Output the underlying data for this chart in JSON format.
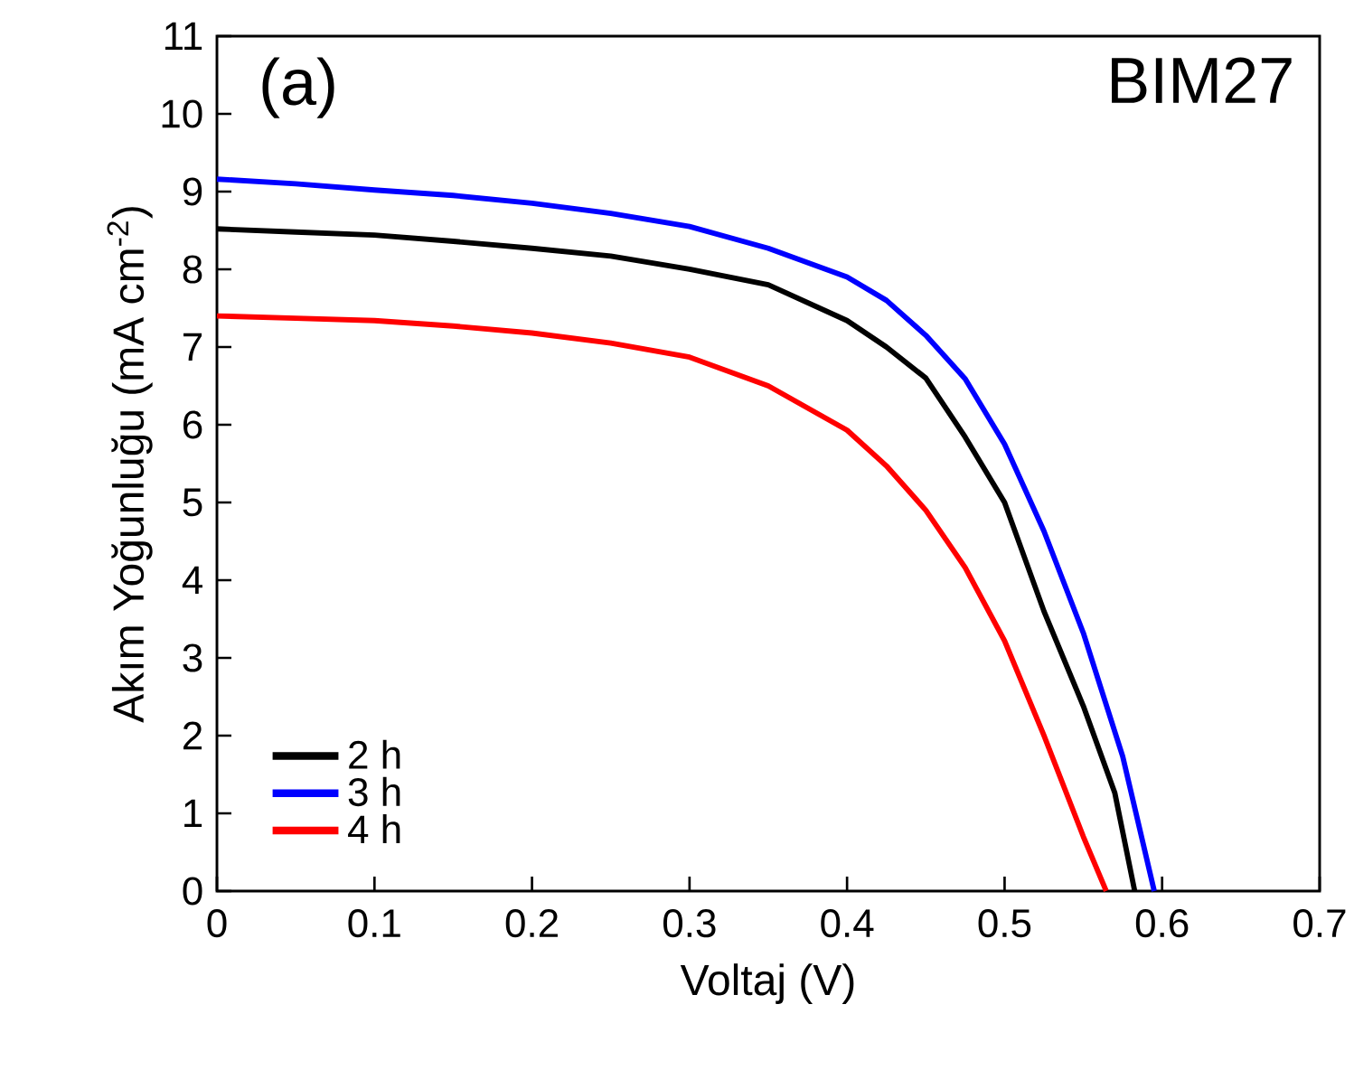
{
  "chart_data": {
    "type": "line",
    "xlabel": "Voltaj (V)",
    "ylabel": "Akım Yoğunluğu (mA cm$^{-2}$)",
    "annotations": [
      "(a)",
      "BIM27"
    ],
    "xlim": [
      0,
      0.7
    ],
    "ylim": [
      0,
      11
    ],
    "xticks": [
      0,
      0.1,
      0.2,
      0.3,
      0.4,
      0.5,
      0.6,
      0.7
    ],
    "yticks": [
      0,
      1,
      2,
      3,
      4,
      5,
      6,
      7,
      8,
      9,
      10,
      11
    ],
    "grid": false,
    "legend": "bottom left",
    "marker": "none",
    "line_style": "solid",
    "series": [
      {
        "name": "2 h",
        "color": "#000000",
        "x": [
          0,
          0.05,
          0.1,
          0.15,
          0.2,
          0.25,
          0.3,
          0.35,
          0.4,
          0.425,
          0.45,
          0.475,
          0.5,
          0.525,
          0.55,
          0.57,
          0.5826
        ],
        "values": [
          8.52,
          8.48,
          8.44,
          8.36,
          8.27,
          8.17,
          8.0,
          7.8,
          7.34,
          7.0,
          6.6,
          5.84,
          5.0,
          3.6,
          2.38,
          1.26,
          0
        ]
      },
      {
        "name": "3 h",
        "color": "#0000ff",
        "x": [
          0,
          0.05,
          0.1,
          0.15,
          0.2,
          0.25,
          0.3,
          0.35,
          0.4,
          0.425,
          0.45,
          0.475,
          0.5,
          0.525,
          0.55,
          0.575,
          0.595
        ],
        "values": [
          9.16,
          9.1,
          9.02,
          8.95,
          8.85,
          8.72,
          8.55,
          8.27,
          7.9,
          7.6,
          7.15,
          6.59,
          5.75,
          4.63,
          3.32,
          1.73,
          0
        ]
      },
      {
        "name": "4 h",
        "color": "#ff0000",
        "x": [
          0,
          0.05,
          0.1,
          0.15,
          0.2,
          0.25,
          0.3,
          0.35,
          0.4,
          0.425,
          0.45,
          0.475,
          0.5,
          0.525,
          0.55,
          0.5645
        ],
        "values": [
          7.4,
          7.37,
          7.34,
          7.27,
          7.18,
          7.05,
          6.87,
          6.5,
          5.93,
          5.47,
          4.9,
          4.16,
          3.22,
          2.0,
          0.7,
          0
        ]
      }
    ]
  }
}
